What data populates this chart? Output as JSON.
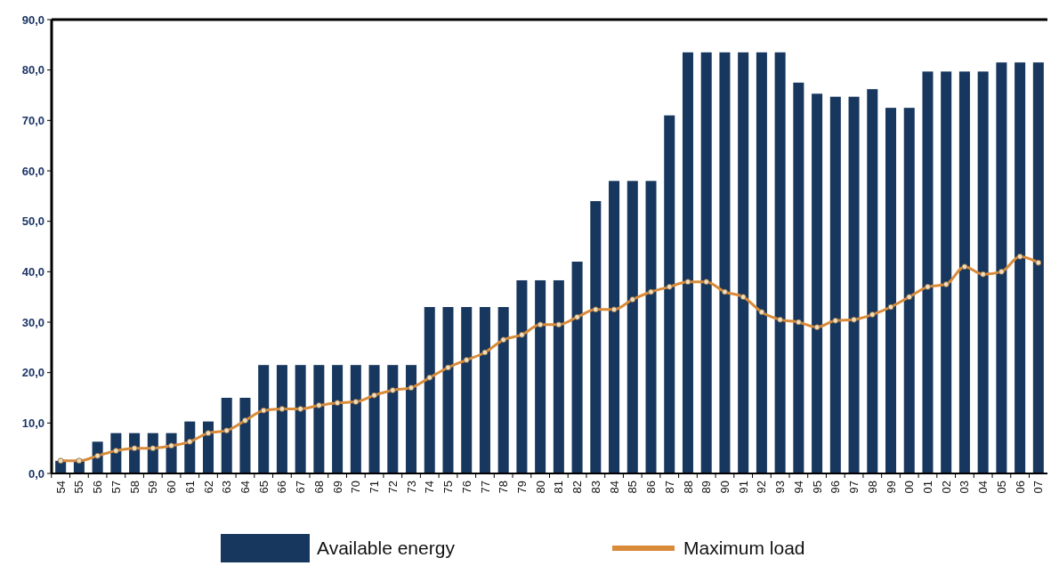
{
  "chart_data": {
    "type": "bar",
    "categories": [
      "54",
      "55",
      "56",
      "57",
      "58",
      "59",
      "60",
      "61",
      "62",
      "63",
      "64",
      "65",
      "66",
      "67",
      "68",
      "69",
      "70",
      "71",
      "72",
      "73",
      "74",
      "75",
      "76",
      "77",
      "78",
      "79",
      "80",
      "81",
      "82",
      "83",
      "84",
      "85",
      "86",
      "87",
      "88",
      "89",
      "90",
      "91",
      "92",
      "93",
      "94",
      "95",
      "96",
      "97",
      "98",
      "99",
      "00",
      "01",
      "02",
      "03",
      "04",
      "05",
      "06",
      "07"
    ],
    "series": [
      {
        "name": "Available energy",
        "color": "#17375e",
        "values": [
          2.5,
          2.5,
          6.3,
          8,
          8,
          8,
          8,
          10.3,
          10.3,
          15,
          15,
          21.5,
          21.5,
          21.5,
          21.5,
          21.5,
          21.5,
          21.5,
          21.5,
          21.5,
          33,
          33,
          33,
          33,
          33,
          38.3,
          38.3,
          38.3,
          42,
          54,
          58,
          58,
          58,
          71,
          83.5,
          83.5,
          83.5,
          83.5,
          83.5,
          83.5,
          77.5,
          75.3,
          74.7,
          74.7,
          76.2,
          72.5,
          72.5,
          79.7,
          79.7,
          79.7,
          79.7,
          81.5,
          81.5,
          81.5
        ]
      },
      {
        "name": "Maximum load",
        "type": "line",
        "color": "#d98b3a",
        "marker": "circle",
        "values": [
          2.5,
          2.5,
          3.5,
          4.5,
          5,
          5,
          5.5,
          6.3,
          8,
          8.5,
          10.5,
          12.5,
          12.8,
          12.8,
          13.5,
          14,
          14.2,
          15.5,
          16.5,
          17,
          19,
          21,
          22.5,
          24,
          26.5,
          27.5,
          29.5,
          29.5,
          31,
          32.5,
          32.5,
          34.5,
          36,
          37,
          38,
          38,
          36,
          35,
          32,
          30.5,
          30,
          29,
          30.3,
          30.5,
          31.5,
          33,
          35,
          37,
          37.5,
          41,
          39.5,
          40,
          43,
          41.8
        ]
      }
    ],
    "ylim": [
      0,
      90
    ],
    "yticks": [
      {
        "value": 0,
        "label": "0,0"
      },
      {
        "value": 10,
        "label": "10,0"
      },
      {
        "value": 20,
        "label": "20,0"
      },
      {
        "value": 30,
        "label": "30,0"
      },
      {
        "value": 40,
        "label": "40,0"
      },
      {
        "value": 50,
        "label": "50,0"
      },
      {
        "value": 60,
        "label": "60,0"
      },
      {
        "value": 70,
        "label": "70,0"
      },
      {
        "value": 80,
        "label": "80,0"
      },
      {
        "value": 90,
        "label": "90,0"
      }
    ],
    "grid": false,
    "legend": "bottom"
  }
}
